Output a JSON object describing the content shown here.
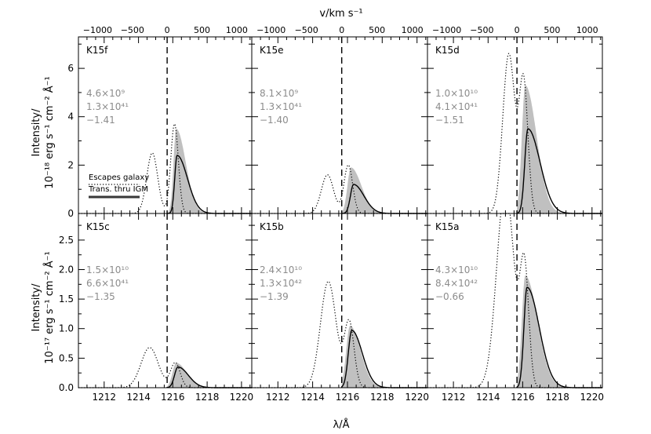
{
  "figure": {
    "x_title": "λ/Å",
    "top_title": "v/km s⁻¹",
    "top_row_ylabel": [
      "Intensity/",
      "10⁻¹⁸ erg s⁻¹ cm⁻² Å⁻¹"
    ],
    "bottom_row_ylabel": [
      "Intensity/",
      "10⁻¹⁷ erg s⁻¹ cm⁻² Å⁻¹"
    ],
    "legend": {
      "escapes": "Escapes galaxy",
      "trans": "Trans. thru IGM"
    },
    "colors": {
      "fill": "#c0c0c0",
      "annotation": "#8c8c8c",
      "legend_gray": "#999999"
    }
  },
  "chart_data": [
    {
      "type": "line",
      "panel": "K15f",
      "annotations": [
        "4.6×10⁹",
        "1.3×10⁴¹",
        "−1.41"
      ],
      "xlim": [
        1210.5,
        1220.6
      ],
      "ylim": [
        0,
        7.3
      ],
      "yticks": [
        0,
        2,
        4,
        6
      ],
      "xticks": [
        1212,
        1214,
        1216,
        1218,
        1220
      ],
      "top_ticks": [
        -1000,
        -500,
        0,
        500,
        1000
      ],
      "line_center": 1215.67,
      "escape_peaks": [
        {
          "mu": 1214.8,
          "sig": 0.32,
          "amp": 2.5
        },
        {
          "mu": 1216.1,
          "sig": 0.22,
          "amp": 3.7
        }
      ],
      "trans_peak": {
        "mu": 1216.25,
        "amp": 2.4,
        "sl": 0.14,
        "sr": 0.6
      },
      "fill_peak": {
        "mu": 1216.2,
        "amp": 3.5,
        "sl": 0.16,
        "sr": 0.55
      }
    },
    {
      "type": "line",
      "panel": "K15e",
      "annotations": [
        "8.1×10⁹",
        "1.3×10⁴¹",
        "−1.40"
      ],
      "xlim": [
        1210.5,
        1220.6
      ],
      "ylim": [
        0,
        7.3
      ],
      "yticks": [
        0,
        2,
        4,
        6
      ],
      "xticks": [
        1212,
        1214,
        1216,
        1218,
        1220
      ],
      "top_ticks": [
        -1000,
        -500,
        0,
        500,
        1000
      ],
      "line_center": 1215.67,
      "escape_peaks": [
        {
          "mu": 1214.85,
          "sig": 0.35,
          "amp": 1.6
        },
        {
          "mu": 1216.05,
          "sig": 0.25,
          "amp": 2.0
        }
      ],
      "trans_peak": {
        "mu": 1216.35,
        "amp": 1.2,
        "sl": 0.18,
        "sr": 0.6
      },
      "fill_peak": {
        "mu": 1216.2,
        "amp": 1.9,
        "sl": 0.2,
        "sr": 0.6
      }
    },
    {
      "type": "line",
      "panel": "K15d",
      "annotations": [
        "1.0×10¹⁰",
        "4.1×10⁴¹",
        "−1.51"
      ],
      "xlim": [
        1210.5,
        1220.6
      ],
      "ylim": [
        0,
        7.3
      ],
      "yticks": [
        0,
        2,
        4,
        6
      ],
      "xticks": [
        1212,
        1214,
        1216,
        1218,
        1220
      ],
      "top_ticks": [
        -1000,
        -500,
        0,
        500,
        1000
      ],
      "line_center": 1215.67,
      "escape_peaks": [
        {
          "mu": 1215.2,
          "sig": 0.35,
          "amp": 6.6
        },
        {
          "mu": 1216.05,
          "sig": 0.25,
          "amp": 5.4
        }
      ],
      "trans_peak": {
        "mu": 1216.3,
        "amp": 3.5,
        "sl": 0.18,
        "sr": 0.7
      },
      "fill_peak": {
        "mu": 1216.15,
        "amp": 5.3,
        "sl": 0.2,
        "sr": 0.65
      }
    },
    {
      "type": "line",
      "panel": "K15c",
      "annotations": [
        "1.5×10¹⁰",
        "6.6×10⁴¹",
        "−1.35"
      ],
      "xlim": [
        1210.5,
        1220.6
      ],
      "ylim": [
        0,
        2.95
      ],
      "yticks": [
        0.0,
        0.5,
        1.0,
        1.5,
        2.0,
        2.5
      ],
      "xticks": [
        1212,
        1214,
        1216,
        1218,
        1220
      ],
      "top_ticks": [],
      "line_center": 1215.67,
      "escape_peaks": [
        {
          "mu": 1214.65,
          "sig": 0.5,
          "amp": 0.68
        },
        {
          "mu": 1216.15,
          "sig": 0.28,
          "amp": 0.42
        }
      ],
      "trans_peak": {
        "mu": 1216.3,
        "amp": 0.35,
        "sl": 0.2,
        "sr": 0.6
      },
      "fill_peak": {
        "mu": 1216.2,
        "amp": 0.42,
        "sl": 0.22,
        "sr": 0.6
      }
    },
    {
      "type": "line",
      "panel": "K15b",
      "annotations": [
        "2.4×10¹⁰",
        "1.3×10⁴²",
        "−1.39"
      ],
      "xlim": [
        1210.5,
        1220.6
      ],
      "ylim": [
        0,
        2.95
      ],
      "yticks": [
        0.0,
        0.5,
        1.0,
        1.5,
        2.0,
        2.5
      ],
      "xticks": [
        1212,
        1214,
        1216,
        1218,
        1220
      ],
      "top_ticks": [],
      "line_center": 1215.67,
      "escape_peaks": [
        {
          "mu": 1214.9,
          "sig": 0.45,
          "amp": 1.8
        },
        {
          "mu": 1216.1,
          "sig": 0.28,
          "amp": 1.1
        }
      ],
      "trans_peak": {
        "mu": 1216.25,
        "amp": 0.97,
        "sl": 0.2,
        "sr": 0.6
      },
      "fill_peak": {
        "mu": 1216.15,
        "amp": 1.05,
        "sl": 0.22,
        "sr": 0.6
      }
    },
    {
      "type": "line",
      "panel": "K15a",
      "annotations": [
        "4.3×10¹⁰",
        "8.4×10⁴²",
        "−0.66"
      ],
      "xlim": [
        1210.5,
        1220.6
      ],
      "ylim": [
        0,
        2.95
      ],
      "yticks": [
        0.0,
        0.5,
        1.0,
        1.5,
        2.0,
        2.5
      ],
      "xticks": [
        1212,
        1214,
        1216,
        1218,
        1220
      ],
      "top_ticks": [],
      "line_center": 1215.67,
      "escape_peaks": [
        {
          "mu": 1215.0,
          "sig": 0.5,
          "amp": 3.4
        },
        {
          "mu": 1216.1,
          "sig": 0.25,
          "amp": 1.95
        }
      ],
      "trans_peak": {
        "mu": 1216.25,
        "amp": 1.7,
        "sl": 0.18,
        "sr": 0.7
      },
      "fill_peak": {
        "mu": 1216.15,
        "amp": 1.9,
        "sl": 0.2,
        "sr": 0.7
      }
    }
  ]
}
